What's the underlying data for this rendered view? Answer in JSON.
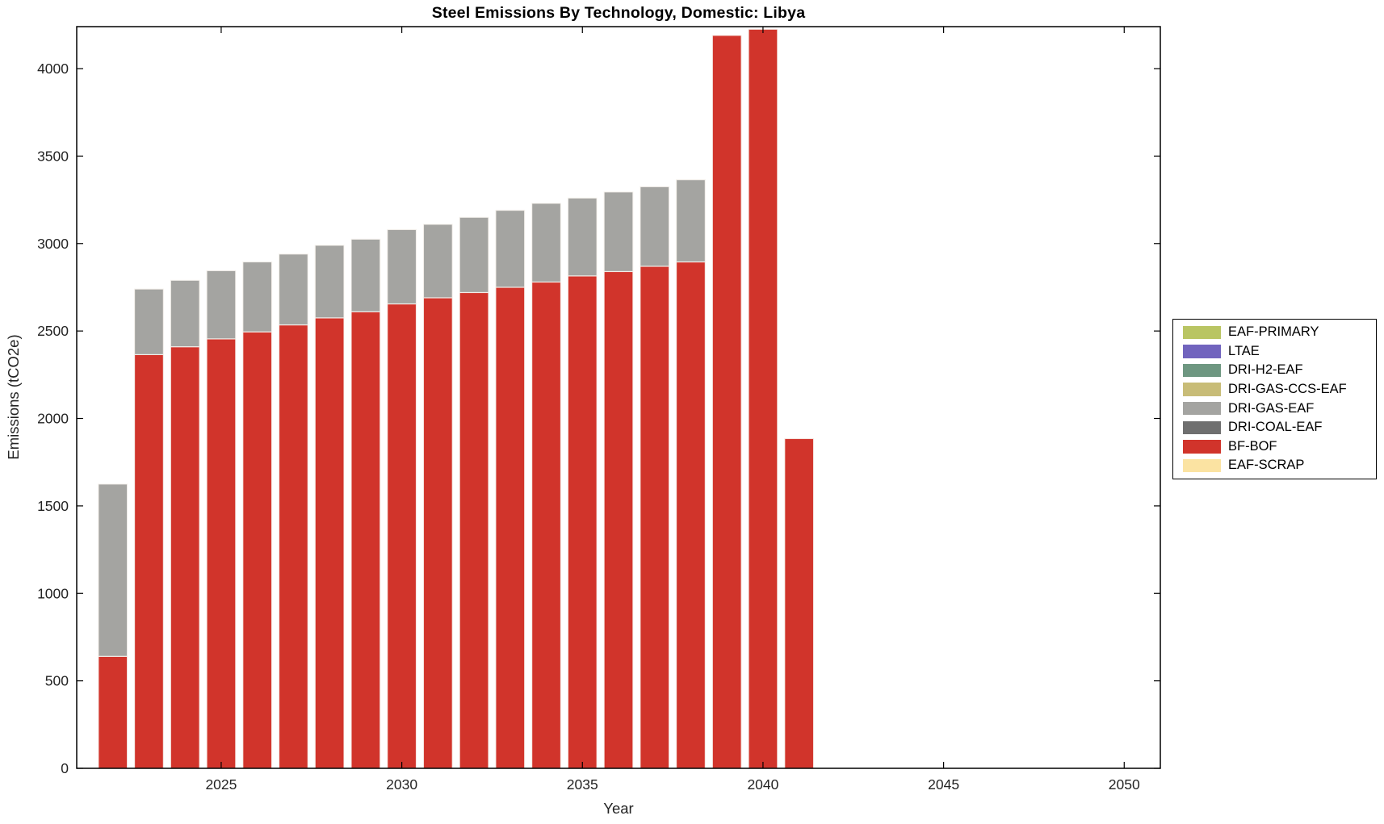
{
  "figure": {
    "title": "Steel Emissions By Technology, Domestic: Libya",
    "xlabel": "Year",
    "ylabel": "Emissions (tCO2e)",
    "background_color": "#ffffff",
    "axis_line_color": "#000000",
    "tick_label_color": "#242424"
  },
  "chart_data": {
    "type": "bar",
    "stacked": true,
    "title": "Steel Emissions By Technology, Domestic: Libya",
    "xlabel": "Year",
    "ylabel": "Emissions (tCO2e)",
    "grid": false,
    "legend_position": "right-outside",
    "bar_width_fraction": 0.8,
    "xlim": [
      2021,
      2051
    ],
    "ylim": [
      0,
      4240
    ],
    "xticks": [
      2025,
      2030,
      2035,
      2040,
      2045,
      2050
    ],
    "yticks": [
      0,
      500,
      1000,
      1500,
      2000,
      2500,
      3000,
      3500,
      4000
    ],
    "xtick_labels": [
      "2025",
      "2030",
      "2035",
      "2040",
      "2045",
      "2050"
    ],
    "ytick_labels": [
      "0",
      "500",
      "1000",
      "1500",
      "2000",
      "2500",
      "3000",
      "3500",
      "4000"
    ],
    "x": [
      2022,
      2023,
      2024,
      2025,
      2026,
      2027,
      2028,
      2029,
      2030,
      2031,
      2032,
      2033,
      2034,
      2035,
      2036,
      2037,
      2038,
      2039,
      2040,
      2041
    ],
    "series": [
      {
        "name": "BF-BOF",
        "color": "#d1342b",
        "values": [
          640,
          2365,
          2410,
          2455,
          2495,
          2535,
          2575,
          2610,
          2655,
          2690,
          2720,
          2750,
          2780,
          2815,
          2840,
          2870,
          2895,
          4190,
          4225,
          1885
        ]
      },
      {
        "name": "DRI-GAS-EAF",
        "color": "#a4a4a1",
        "values": [
          985,
          375,
          380,
          390,
          400,
          405,
          415,
          415,
          425,
          420,
          430,
          440,
          450,
          445,
          455,
          455,
          470,
          0,
          0,
          0
        ]
      },
      {
        "name": "DRI-COAL-EAF",
        "color": "#6f6f6f",
        "values": [
          0,
          0,
          0,
          0,
          0,
          0,
          0,
          0,
          0,
          0,
          0,
          0,
          0,
          0,
          0,
          0,
          0,
          0,
          0,
          0
        ]
      },
      {
        "name": "DRI-GAS-CCS-EAF",
        "color": "#c8bc77",
        "values": [
          0,
          0,
          0,
          0,
          0,
          0,
          0,
          0,
          0,
          0,
          0,
          0,
          0,
          0,
          0,
          0,
          0,
          0,
          0,
          0
        ]
      },
      {
        "name": "DRI-H2-EAF",
        "color": "#6e9781",
        "values": [
          0,
          0,
          0,
          0,
          0,
          0,
          0,
          0,
          0,
          0,
          0,
          0,
          0,
          0,
          0,
          0,
          0,
          0,
          0,
          0
        ]
      },
      {
        "name": "LTAE",
        "color": "#7164be",
        "values": [
          0,
          0,
          0,
          0,
          0,
          0,
          0,
          0,
          0,
          0,
          0,
          0,
          0,
          0,
          0,
          0,
          0,
          0,
          0,
          0
        ]
      },
      {
        "name": "EAF-PRIMARY",
        "color": "#b9c563",
        "values": [
          0,
          0,
          0,
          0,
          0,
          0,
          0,
          0,
          0,
          0,
          0,
          0,
          0,
          0,
          0,
          0,
          0,
          0,
          0,
          0
        ]
      },
      {
        "name": "EAF-SCRAP",
        "color": "#fbe3a2",
        "values": [
          0,
          0,
          0,
          0,
          0,
          0,
          0,
          0,
          0,
          0,
          0,
          0,
          0,
          0,
          0,
          0,
          0,
          0,
          0,
          0
        ]
      }
    ],
    "legend_entries": [
      "EAF-PRIMARY",
      "LTAE",
      "DRI-H2-EAF",
      "DRI-GAS-CCS-EAF",
      "DRI-GAS-EAF",
      "DRI-COAL-EAF",
      "BF-BOF",
      "EAF-SCRAP"
    ]
  }
}
